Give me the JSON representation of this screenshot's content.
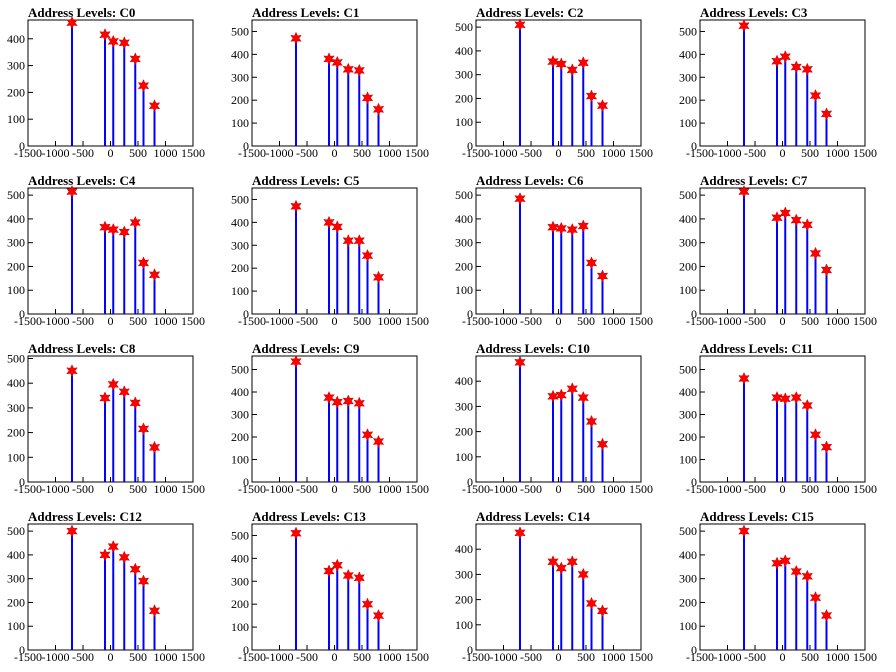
{
  "chart_data": [
    {
      "type": "bar",
      "title": "Address Levels: C0",
      "xlim": [
        -1500,
        1500
      ],
      "yticks": [
        0,
        100,
        200,
        300,
        400
      ],
      "ylim": [
        0,
        470
      ],
      "x": [
        -700,
        -100,
        50,
        250,
        450,
        600,
        800
      ],
      "values": [
        460,
        415,
        390,
        385,
        325,
        225,
        150
      ],
      "x_ticks": [
        -1500,
        -1000,
        -500,
        0,
        500,
        1000,
        1500
      ]
    },
    {
      "type": "bar",
      "title": "Address Levels: C1",
      "xlim": [
        -1500,
        1500
      ],
      "yticks": [
        0,
        100,
        200,
        300,
        400,
        500
      ],
      "ylim": [
        0,
        550
      ],
      "x": [
        -700,
        -100,
        50,
        250,
        450,
        600,
        800
      ],
      "values": [
        470,
        380,
        365,
        335,
        330,
        210,
        160
      ],
      "x_ticks": [
        -1500,
        -1000,
        -500,
        0,
        500,
        1000,
        1500
      ]
    },
    {
      "type": "bar",
      "title": "Address Levels: C2",
      "xlim": [
        -1500,
        1500
      ],
      "yticks": [
        0,
        100,
        200,
        300,
        400,
        500
      ],
      "ylim": [
        0,
        530
      ],
      "x": [
        -700,
        -100,
        50,
        250,
        450,
        600,
        800
      ],
      "values": [
        510,
        355,
        345,
        320,
        350,
        210,
        170
      ],
      "x_ticks": [
        -1500,
        -1000,
        -500,
        0,
        500,
        1000,
        1500
      ]
    },
    {
      "type": "bar",
      "title": "Address Levels: C3",
      "xlim": [
        -1500,
        1500
      ],
      "yticks": [
        0,
        100,
        200,
        300,
        400,
        500
      ],
      "ylim": [
        0,
        550
      ],
      "x": [
        -700,
        -100,
        50,
        250,
        450,
        600,
        800
      ],
      "values": [
        525,
        370,
        390,
        345,
        335,
        220,
        140
      ],
      "x_ticks": [
        -1500,
        -1000,
        -500,
        0,
        500,
        1000,
        1500
      ]
    },
    {
      "type": "bar",
      "title": "Address Levels: C4",
      "xlim": [
        -1500,
        1500
      ],
      "yticks": [
        0,
        100,
        200,
        300,
        400,
        500
      ],
      "ylim": [
        0,
        530
      ],
      "x": [
        -700,
        -100,
        50,
        250,
        450,
        600,
        800
      ],
      "values": [
        515,
        365,
        355,
        345,
        385,
        215,
        165
      ],
      "x_ticks": [
        -1500,
        -1000,
        -500,
        0,
        500,
        1000,
        1500
      ]
    },
    {
      "type": "bar",
      "title": "Address Levels: C5",
      "xlim": [
        -1500,
        1500
      ],
      "yticks": [
        0,
        100,
        200,
        300,
        400,
        500
      ],
      "ylim": [
        0,
        550
      ],
      "x": [
        -700,
        -100,
        50,
        250,
        450,
        600,
        800
      ],
      "values": [
        470,
        400,
        380,
        320,
        320,
        255,
        160
      ],
      "x_ticks": [
        -1500,
        -1000,
        -500,
        0,
        500,
        1000,
        1500
      ]
    },
    {
      "type": "bar",
      "title": "Address Levels: C6",
      "xlim": [
        -1500,
        1500
      ],
      "yticks": [
        0,
        100,
        200,
        300,
        400,
        500
      ],
      "ylim": [
        0,
        530
      ],
      "x": [
        -700,
        -100,
        50,
        250,
        450,
        600,
        800
      ],
      "values": [
        485,
        365,
        360,
        355,
        370,
        215,
        160
      ],
      "x_ticks": [
        -1500,
        -1000,
        -500,
        0,
        500,
        1000,
        1500
      ]
    },
    {
      "type": "bar",
      "title": "Address Levels: C7",
      "xlim": [
        -1500,
        1500
      ],
      "yticks": [
        0,
        100,
        200,
        300,
        400,
        500
      ],
      "ylim": [
        0,
        530
      ],
      "x": [
        -700,
        -100,
        50,
        250,
        450,
        600,
        800
      ],
      "values": [
        515,
        405,
        425,
        395,
        375,
        255,
        185
      ],
      "x_ticks": [
        -1500,
        -1000,
        -500,
        0,
        500,
        1000,
        1500
      ]
    },
    {
      "type": "bar",
      "title": "Address Levels: C8",
      "xlim": [
        -1500,
        1500
      ],
      "yticks": [
        0,
        100,
        200,
        300,
        400,
        500
      ],
      "ylim": [
        0,
        510
      ],
      "x": [
        -700,
        -100,
        50,
        250,
        450,
        600,
        800
      ],
      "values": [
        450,
        340,
        395,
        365,
        320,
        215,
        140
      ],
      "x_ticks": [
        -1500,
        -1000,
        -500,
        0,
        500,
        1000,
        1500
      ]
    },
    {
      "type": "bar",
      "title": "Address Levels: C9",
      "xlim": [
        -1500,
        1500
      ],
      "yticks": [
        0,
        100,
        200,
        300,
        400,
        500
      ],
      "ylim": [
        0,
        560
      ],
      "x": [
        -700,
        -100,
        50,
        250,
        450,
        600,
        800
      ],
      "values": [
        535,
        375,
        355,
        360,
        350,
        210,
        180
      ],
      "x_ticks": [
        -1500,
        -1000,
        -500,
        0,
        500,
        1000,
        1500
      ]
    },
    {
      "type": "bar",
      "title": "Address Levels: C10",
      "xlim": [
        -1500,
        1500
      ],
      "yticks": [
        0,
        100,
        200,
        300,
        400
      ],
      "ylim": [
        0,
        500
      ],
      "x": [
        -700,
        -100,
        50,
        250,
        450,
        600,
        800
      ],
      "values": [
        475,
        340,
        345,
        370,
        335,
        240,
        150
      ],
      "x_ticks": [
        -1500,
        -1000,
        -500,
        0,
        500,
        1000,
        1500
      ]
    },
    {
      "type": "bar",
      "title": "Address Levels: C11",
      "xlim": [
        -1500,
        1500
      ],
      "yticks": [
        0,
        100,
        200,
        300,
        400,
        500
      ],
      "ylim": [
        0,
        560
      ],
      "x": [
        -700,
        -100,
        50,
        250,
        450,
        600,
        800
      ],
      "values": [
        460,
        375,
        370,
        375,
        340,
        210,
        155
      ],
      "x_ticks": [
        -1500,
        -1000,
        -500,
        0,
        500,
        1000,
        1500
      ]
    },
    {
      "type": "bar",
      "title": "Address Levels: C12",
      "xlim": [
        -1500,
        1500
      ],
      "yticks": [
        0,
        100,
        200,
        300,
        400,
        500
      ],
      "ylim": [
        0,
        530
      ],
      "x": [
        -700,
        -100,
        50,
        250,
        450,
        600,
        800
      ],
      "values": [
        500,
        400,
        435,
        390,
        340,
        290,
        165
      ],
      "x_ticks": [
        -1500,
        -1000,
        -500,
        0,
        500,
        1000,
        1500
      ]
    },
    {
      "type": "bar",
      "title": "Address Levels: C13",
      "xlim": [
        -1500,
        1500
      ],
      "yticks": [
        0,
        100,
        200,
        300,
        400,
        500
      ],
      "ylim": [
        0,
        550
      ],
      "x": [
        -700,
        -100,
        50,
        250,
        450,
        600,
        800
      ],
      "values": [
        510,
        345,
        370,
        325,
        315,
        200,
        150
      ],
      "x_ticks": [
        -1500,
        -1000,
        -500,
        0,
        500,
        1000,
        1500
      ]
    },
    {
      "type": "bar",
      "title": "Address Levels: C14",
      "xlim": [
        -1500,
        1500
      ],
      "yticks": [
        0,
        100,
        200,
        300,
        400
      ],
      "ylim": [
        0,
        500
      ],
      "x": [
        -700,
        -100,
        50,
        250,
        450,
        600,
        800
      ],
      "values": [
        465,
        350,
        325,
        350,
        300,
        185,
        155
      ],
      "x_ticks": [
        -1500,
        -1000,
        -500,
        0,
        500,
        1000,
        1500
      ]
    },
    {
      "type": "bar",
      "title": "Address Levels: C15",
      "xlim": [
        -1500,
        1500
      ],
      "yticks": [
        0,
        100,
        200,
        300,
        400,
        500
      ],
      "ylim": [
        0,
        530
      ],
      "x": [
        -700,
        -100,
        50,
        250,
        450,
        600,
        800
      ],
      "values": [
        500,
        365,
        375,
        330,
        310,
        220,
        145
      ],
      "x_ticks": [
        -1500,
        -1000,
        -500,
        0,
        500,
        1000,
        1500
      ]
    }
  ],
  "colors": {
    "bars": "#0000ff",
    "markers": "#ff0000",
    "marker_stroke": "#cc0000",
    "axes": "#000000"
  },
  "marker": "star"
}
